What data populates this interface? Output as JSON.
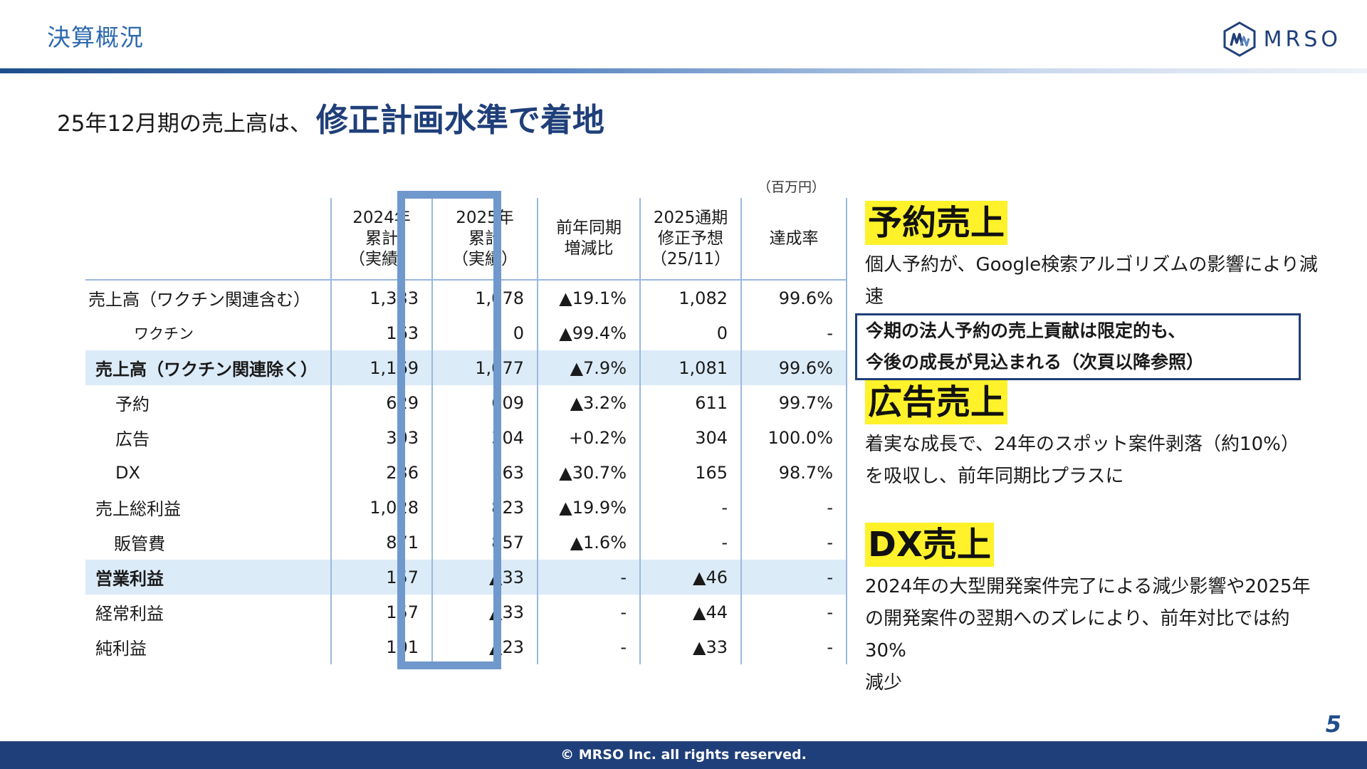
{
  "header": {
    "title": "決算概況",
    "logo_text": "MRSO"
  },
  "headline": {
    "lead": "25年12月期の売上高は、",
    "emphasis": "修正計画水準で着地"
  },
  "table": {
    "unit": "（百万円）",
    "columns": [
      "2024年\n累計\n（実績）",
      "2025年\n累計\n（実績）",
      "前年同期\n増減比",
      "2025通期\n修正予想\n（25/11）",
      "達成率"
    ],
    "rows": [
      {
        "label": "売上高（ワクチン関連含む）",
        "values": [
          "1,333",
          "1,078",
          "▲19.1%",
          "1,082",
          "99.6%"
        ]
      },
      {
        "label": "ワクチン",
        "values": [
          "163",
          "0",
          "▲99.4%",
          "0",
          "-"
        ]
      },
      {
        "label": "売上高（ワクチン関連除く）",
        "values": [
          "1,169",
          "1,077",
          "▲7.9%",
          "1,081",
          "99.6%"
        ]
      },
      {
        "label": "予約",
        "values": [
          "629",
          "609",
          "▲3.2%",
          "611",
          "99.7%"
        ]
      },
      {
        "label": "広告",
        "values": [
          "303",
          "304",
          "+0.2%",
          "304",
          "100.0%"
        ]
      },
      {
        "label": "DX",
        "values": [
          "236",
          "163",
          "▲30.7%",
          "165",
          "98.7%"
        ]
      },
      {
        "label": "売上総利益",
        "values": [
          "1,028",
          "823",
          "▲19.9%",
          "-",
          "-"
        ]
      },
      {
        "label": "販管費",
        "values": [
          "871",
          "857",
          "▲1.6%",
          "-",
          "-"
        ]
      },
      {
        "label": "営業利益",
        "values": [
          "157",
          "▲33",
          "-",
          "▲46",
          "-"
        ]
      },
      {
        "label": "経常利益",
        "values": [
          "157",
          "▲33",
          "-",
          "▲44",
          "-"
        ]
      },
      {
        "label": "純利益",
        "values": [
          "101",
          "▲23",
          "-",
          "▲33",
          "-"
        ]
      }
    ]
  },
  "sections": {
    "reservation": {
      "tag": "予約売上",
      "text": "個人予約が、Google検索アルゴリズムの影響により減速",
      "boxed_line1": "今期の法人予約の売上貢献は限定的も、",
      "boxed_line2": "今後の成長が見込まれる（次頁以降参照）"
    },
    "ads": {
      "tag": "広告売上",
      "line1": "着実な成長で、24年のスポット案件剥落（約10%）",
      "line2": "を吸収し、前年同期比プラスに"
    },
    "dx": {
      "tag": "DX売上",
      "line1": "2024年の大型開発案件完了による減少影響や2025年",
      "line2": "の開発案件の翌期へのズレにより、前年対比では約30%",
      "line3": "減少"
    }
  },
  "footer": {
    "copyright": "© MRSO Inc. all rights reserved.",
    "page": "5"
  },
  "colors": {
    "brand_navy": "#1f3f7a",
    "accent_blue": "#2e6ab0",
    "highlight_yellow": "#fff22a",
    "row_highlight": "#dcebf8",
    "focus_column": "#6f98cc"
  }
}
